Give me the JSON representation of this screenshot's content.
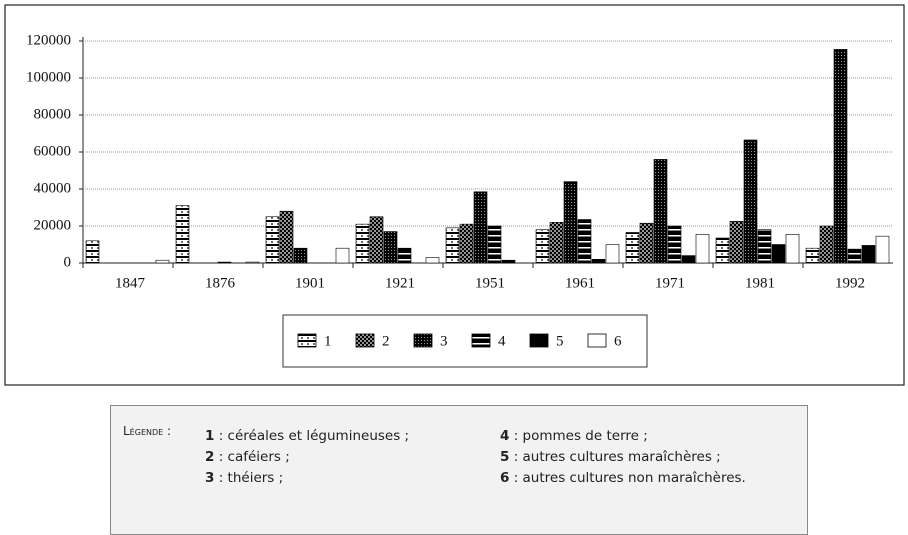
{
  "chart_data": {
    "type": "bar",
    "categories": [
      "1847",
      "1876",
      "1901",
      "1921",
      "1951",
      "1961",
      "1971",
      "1981",
      "1992"
    ],
    "series": [
      {
        "name": "1",
        "values": [
          12000,
          31000,
          25000,
          21000,
          19000,
          18000,
          16500,
          13500,
          8000
        ]
      },
      {
        "name": "2",
        "values": [
          0,
          0,
          28000,
          25000,
          21000,
          22000,
          21500,
          22500,
          20000
        ]
      },
      {
        "name": "3",
        "values": [
          0,
          0,
          8000,
          17000,
          38500,
          44000,
          56000,
          66500,
          115500
        ]
      },
      {
        "name": "4",
        "values": [
          0,
          500,
          0,
          8000,
          20000,
          23500,
          20000,
          18000,
          7500
        ]
      },
      {
        "name": "5",
        "values": [
          0,
          0,
          0,
          0,
          1500,
          2000,
          4000,
          10000,
          9500
        ]
      },
      {
        "name": "6",
        "values": [
          1500,
          500,
          8000,
          3000,
          0,
          10000,
          15500,
          15500,
          14500
        ]
      }
    ],
    "ylim": [
      0,
      120000
    ],
    "yticks": [
      0,
      20000,
      40000,
      60000,
      80000,
      100000,
      120000
    ],
    "grid": true
  },
  "notes": {
    "title": "Légende :",
    "items": [
      {
        "num": "1",
        "text": " : céréales et légumineuses ;"
      },
      {
        "num": "2",
        "text": " : caféiers ;"
      },
      {
        "num": "3",
        "text": " : théiers ;"
      },
      {
        "num": "4",
        "text": " : pommes de terre ;"
      },
      {
        "num": "5",
        "text": " : autres cultures maraîchères ;"
      },
      {
        "num": "6",
        "text": " : autres cultures non maraîchères."
      }
    ]
  }
}
